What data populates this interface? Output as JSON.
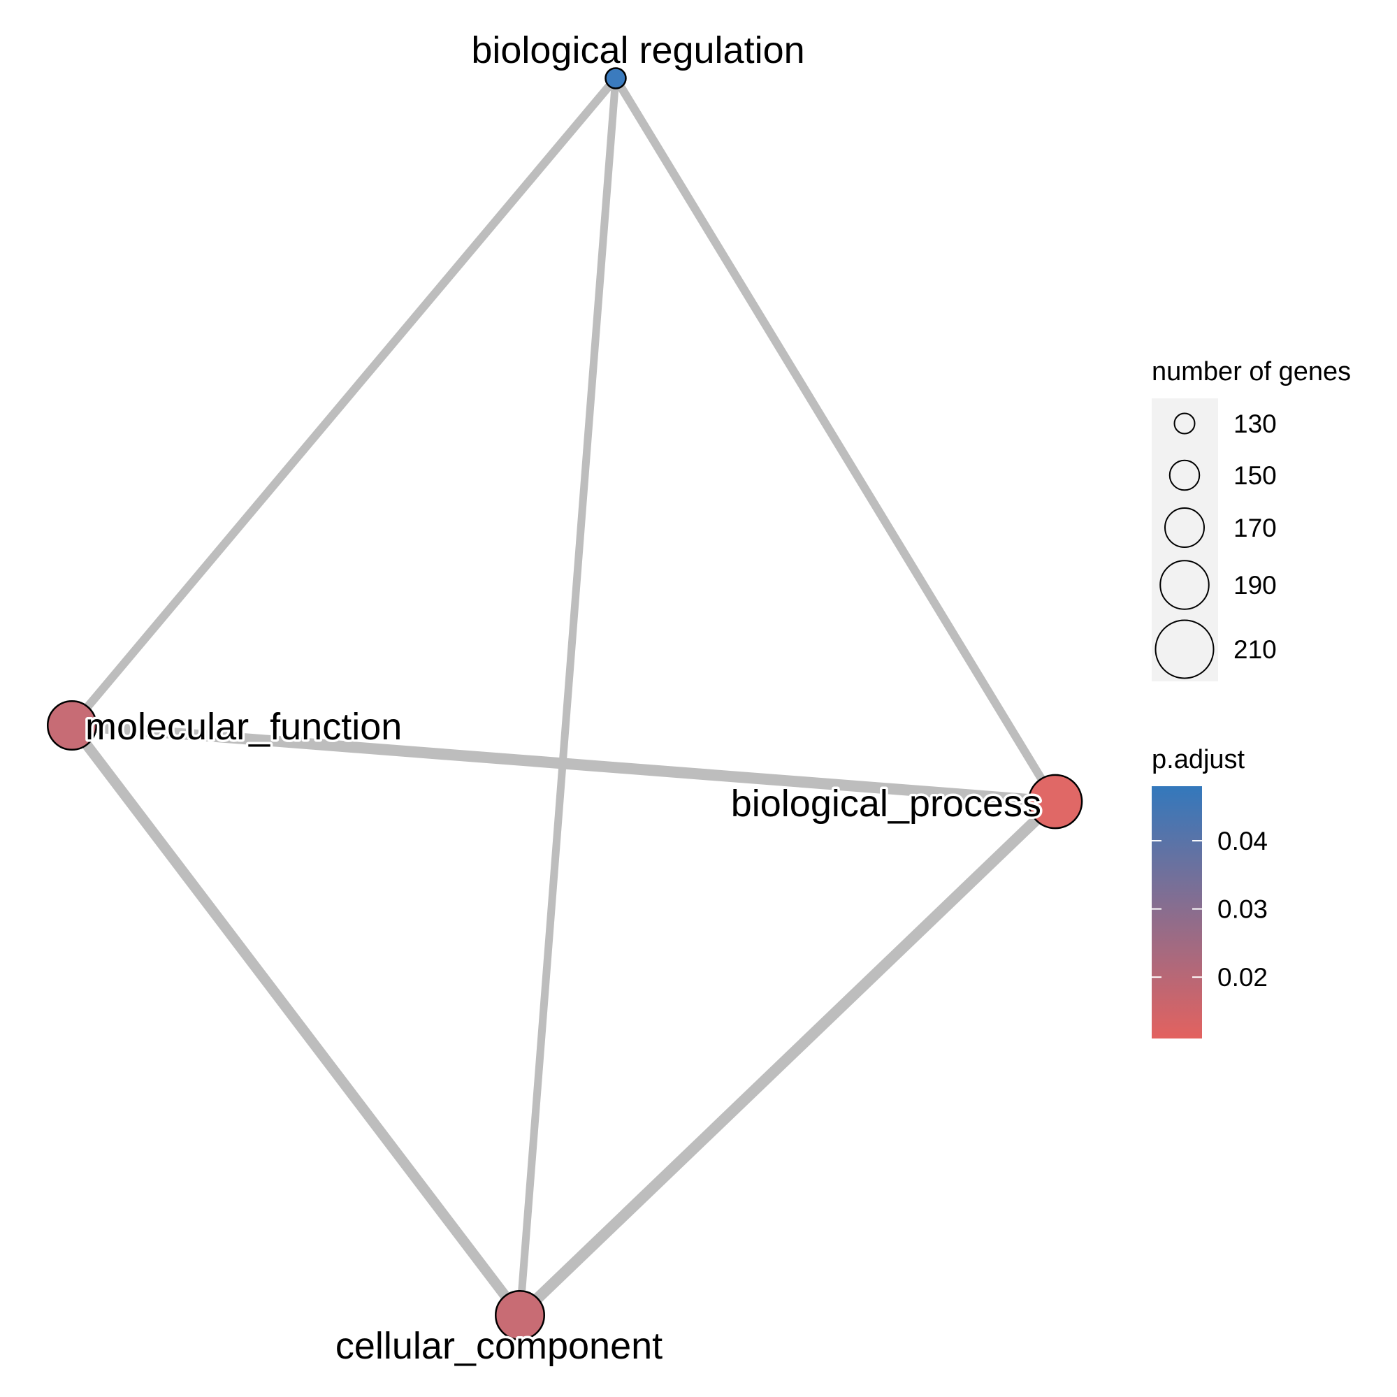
{
  "network": {
    "nodes": [
      {
        "id": "biological_regulation",
        "label": "biological regulation",
        "genes": 130,
        "p_adjust": 0.048,
        "color": "#3B7BBE"
      },
      {
        "id": "molecular_function",
        "label": "molecular_function",
        "genes": 190,
        "p_adjust": 0.017,
        "color": "#C76C75"
      },
      {
        "id": "biological_process",
        "label": "biological_process",
        "genes": 200,
        "p_adjust": 0.011,
        "color": "#E06866"
      },
      {
        "id": "cellular_component",
        "label": "cellular_component",
        "genes": 190,
        "p_adjust": 0.017,
        "color": "#C86C74"
      }
    ],
    "edges": [
      {
        "source": "biological_regulation",
        "target": "molecular_function"
      },
      {
        "source": "biological_regulation",
        "target": "biological_process"
      },
      {
        "source": "biological_regulation",
        "target": "cellular_component"
      },
      {
        "source": "molecular_function",
        "target": "biological_process"
      },
      {
        "source": "molecular_function",
        "target": "cellular_component"
      },
      {
        "source": "biological_process",
        "target": "cellular_component"
      }
    ],
    "edge_color": "#BDBDBD"
  },
  "legend": {
    "size_title": "number of genes",
    "size_entries": [
      {
        "label": "130",
        "genes": 130
      },
      {
        "label": "150",
        "genes": 150
      },
      {
        "label": "170",
        "genes": 170
      },
      {
        "label": "190",
        "genes": 190
      },
      {
        "label": "210",
        "genes": 210
      }
    ],
    "color_title": "p.adjust",
    "color_low": "#E3625F",
    "color_high": "#3378BC",
    "color_range": [
      0.011,
      0.048
    ],
    "color_ticks": [
      {
        "label": "0.04",
        "value": 0.04
      },
      {
        "label": "0.03",
        "value": 0.03
      },
      {
        "label": "0.02",
        "value": 0.02
      }
    ]
  }
}
